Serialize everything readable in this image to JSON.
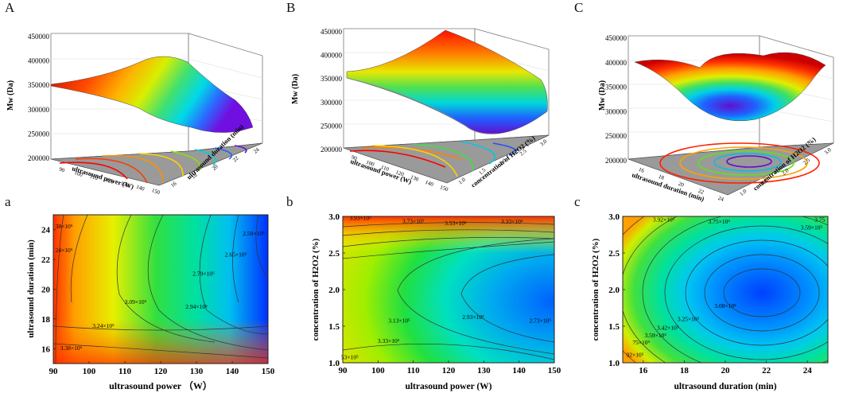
{
  "panel_labels": [
    "A",
    "B",
    "C",
    "a",
    "b",
    "c"
  ],
  "colors": {
    "frame": "#333333",
    "floor": "#9a9a9a",
    "grid": "#dddddd",
    "contour_line": "#333333"
  },
  "chart_data": [
    {
      "id": "A",
      "type": "surface3d",
      "zlabel": "Mw (Da)",
      "zticks": [
        "450000",
        "400000",
        "350000",
        "300000",
        "250000",
        "200000"
      ],
      "xlabel": "ultrasound power (W)",
      "xticks": [
        "90",
        "100",
        "110",
        "120",
        "130",
        "140",
        "150"
      ],
      "ylabel": "ultrasound duration (min)",
      "yticks": [
        "16",
        "18",
        "20",
        "22",
        "24"
      ]
    },
    {
      "id": "B",
      "type": "surface3d",
      "zlabel": "Mw (Da)",
      "zticks": [
        "450000",
        "400000",
        "350000",
        "300000",
        "250000",
        "200000"
      ],
      "xlabel": "ultrasound power (W)",
      "xticks": [
        "90",
        "100",
        "110",
        "120",
        "130",
        "140",
        "150"
      ],
      "ylabel": "concentration of H2O2 (%)",
      "yticks": [
        "1.0",
        "1.5",
        "2.0",
        "2.5",
        "3.0"
      ]
    },
    {
      "id": "C",
      "type": "surface3d",
      "zlabel": "Mw (Da)",
      "zticks": [
        "450000",
        "400000",
        "350000",
        "300000",
        "250000",
        "200000"
      ],
      "xlabel": "ultrasound duration (min)",
      "xticks": [
        "16",
        "18",
        "20",
        "22",
        "24"
      ],
      "ylabel": "concentration of H2O2 (%)",
      "yticks": [
        "1.0",
        "1.5",
        "2.0",
        "2.5",
        "3.0"
      ]
    },
    {
      "id": "a",
      "type": "contour",
      "xlabel": "ultrasound power （W）",
      "ylabel": "ultrasound duration (min)",
      "xlim": [
        90,
        150
      ],
      "ylim": [
        15,
        25
      ],
      "xticks": [
        90,
        100,
        110,
        120,
        130,
        140,
        150
      ],
      "yticks": [
        16,
        18,
        20,
        22,
        24
      ],
      "levels": [
        {
          "label": "2.50×10⁵",
          "x": 146,
          "y": 23.6
        },
        {
          "label": "2.65×10⁵",
          "x": 141,
          "y": 22.2
        },
        {
          "label": "2.79×10⁵",
          "x": 132,
          "y": 20.9
        },
        {
          "label": "2.94×10⁵",
          "x": 130,
          "y": 18.7
        },
        {
          "label": "3.09×10⁵",
          "x": 113,
          "y": 19.0
        },
        {
          "label": "3.24×10⁵",
          "x": 104,
          "y": 17.4
        },
        {
          "label": "3.38×10⁵",
          "x": 95,
          "y": 15.9
        },
        {
          "label": "38×10⁵",
          "x": 93,
          "y": 24.1
        },
        {
          "label": "24×10⁵",
          "x": 93,
          "y": 22.5
        }
      ]
    },
    {
      "id": "b",
      "type": "contour",
      "xlabel": "ultrasound power (W)",
      "ylabel": "concentration of H2O2 (%)",
      "xlim": [
        90,
        150
      ],
      "ylim": [
        1.0,
        3.0
      ],
      "xticks": [
        90,
        100,
        110,
        120,
        130,
        140,
        150
      ],
      "yticks": [
        "1.0",
        "1.5",
        "2.0",
        "2.5",
        "3.0"
      ],
      "levels": [
        {
          "label": "3.93×10⁵",
          "x": 95,
          "y": 2.95
        },
        {
          "label": "3.73×10⁵",
          "x": 110,
          "y": 2.91
        },
        {
          "label": "3.53×10⁵",
          "x": 122,
          "y": 2.88
        },
        {
          "label": "3.33×10⁵",
          "x": 138,
          "y": 2.9
        },
        {
          "label": "3.13×10⁵",
          "x": 106,
          "y": 1.55
        },
        {
          "label": "2.93×10⁵",
          "x": 127,
          "y": 1.6
        },
        {
          "label": "2.73×10⁵",
          "x": 146,
          "y": 1.55
        },
        {
          "label": "3.33×10⁵",
          "x": 103,
          "y": 1.27
        },
        {
          "label": "53×10⁵",
          "x": 92,
          "y": 1.05
        }
      ]
    },
    {
      "id": "c",
      "type": "contour",
      "xlabel": "ultrasound duration (min)",
      "ylabel": "concentration of H2O2 (%)",
      "xlim": [
        15,
        25
      ],
      "ylim": [
        1.0,
        3.0
      ],
      "xticks": [
        16,
        18,
        20,
        22,
        24
      ],
      "yticks": [
        "1.0",
        "1.5",
        "2.0",
        "2.5",
        "3.0"
      ],
      "levels": [
        {
          "label": "3.92×10⁵",
          "x": 17.0,
          "y": 2.93
        },
        {
          "label": "3.75×10⁵",
          "x": 19.7,
          "y": 2.9
        },
        {
          "label": "3.75",
          "x": 24.6,
          "y": 2.93
        },
        {
          "label": "3.59×10⁵",
          "x": 24.2,
          "y": 2.82
        },
        {
          "label": "3.08×10⁵",
          "x": 20.0,
          "y": 1.75
        },
        {
          "label": "3.25×10⁵",
          "x": 18.2,
          "y": 1.57
        },
        {
          "label": "3.42×10⁵",
          "x": 17.2,
          "y": 1.45
        },
        {
          "label": "3.59×10⁵",
          "x": 16.6,
          "y": 1.35
        },
        {
          "label": "75×10⁵",
          "x": 15.9,
          "y": 1.25
        },
        {
          "label": "92×10⁵",
          "x": 15.6,
          "y": 1.08
        }
      ]
    }
  ]
}
